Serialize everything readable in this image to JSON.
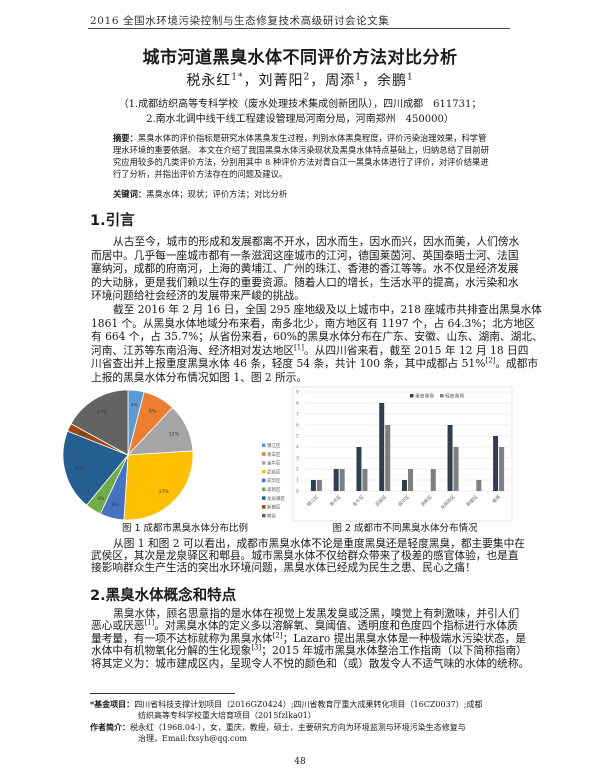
{
  "running_head": "2016 全国水环境污染控制与生态修复技术高级研讨会论文集",
  "title": "城市河道黑臭水体不同评价方法对比分析",
  "authors": [
    {
      "name": "税永红",
      "sup": "1*"
    },
    {
      "name": "刘菁阳",
      "sup": "2"
    },
    {
      "name": "周添",
      "sup": "1"
    },
    {
      "name": "余鹏",
      "sup": "1"
    }
  ],
  "affiliations": [
    "（1.成都纺织高等专科学校（废水处理技术集成创新团队），四川成都　611731；",
    "2.南水北调中线干线工程建设管理局河南分局，河南郑州　450000）"
  ],
  "abstract": {
    "label": "摘要：",
    "text": "黑臭水体的评价指标是研究水体黑臭发生过程，判别水体黑臭程度，评价污染治理效果，科学管理水环境的重要依据。 本文在介绍了我国黑臭水体污染现状及黑臭水体特点基础上，归纳总结了目前研究应用较多的几类评价方法，分别用其中 8 种评价方法对青白江一黑臭水体进行了评价，对评价结果进行了分析，并指出评价方法存在的问题及建议。"
  },
  "keywords": {
    "label": "关键词：",
    "text": "黑臭水体；现状；评价方法；对比分析"
  },
  "section1": {
    "heading": "1.引言",
    "paragraphs": [
      [
        "从古至今，城市的形成和发展都离不开水，因水而生，因水而兴，因水而美，人们傍水",
        "而居中。几乎每一座城市都有一条滋润这座城市的江河，德国莱茵河、英国泰晤士河、法国",
        "塞纳河，成都的府南河，上海的黄埔江、广州的珠江、香港的香江等等。水不仅是经济发展",
        "的大动脉，更是我们赖以生存的重要资源。随着人口的增长，生活水平的提高，水污染和水",
        "环境问题给社会经济的发展带来严峻的挑战。"
      ],
      [
        "截至 2016 年 2 月 16 日，全国 295 座地级及以上城市中，218 座城市共排查出黑臭水体",
        "1861 个。从黑臭水体地域分布来看，南多北少，南方地区有 1197 个，占 64.3%；北方地区",
        "有 664 个，占 35.7%；从省份来看，60%的黑臭水体分布在广东、安徽、山东、湖南、湖北、",
        [
          "河南、江苏等东南沿海、经济相对发达地区",
          {
            "sup": "[1]"
          },
          "。从四川省来看，截至 2015 年 12 月 18 日四"
        ],
        [
          "川省查出并上报重度黑臭水体 46 条，轻度 54 条，共计 100 条，其中成都占 51%",
          {
            "sup": "[2]"
          },
          "。成都市"
        ],
        "上报的黑臭水体分布情况如图 1、图 2 所示。"
      ]
    ],
    "after_figures": [
      [
        "从图 1 和图 2 可以看出，成都市黑臭水体不论是重度黑臭还是轻度黑臭，都主要集中在",
        "武侯区，其次是龙泉驿区和郫县。城市黑臭水体不仅给群众带来了极差的感官体验，也是直",
        "接影响群众生产生活的突出水环境问题，黑臭水体已经成为民生之患、民心之痛！"
      ]
    ]
  },
  "section2": {
    "heading": "2.黑臭水体概念和特点",
    "paragraphs": [
      [
        "黑臭水体，顾名思意指的是水体在视觉上发黑发臭或泛黑，嗅觉上有刺激味，并引人们",
        [
          "恶心或厌恶",
          {
            "sup": "[1]"
          },
          "。对黑臭水体的定义多以溶解氧、臭阈值、透明度和色度四个指标进行水体质"
        ],
        [
          "量考量，有一项不达标就称为黑臭水体",
          {
            "sup": "[2]"
          },
          "；Lazaro 提出黑臭水体是一种极端水污染状态，是"
        ],
        [
          "水体中有机物氧化分解的生化现象",
          {
            "sup": "[3]"
          },
          "；2015 年城市黑臭水体整治工作指南（以下简称指南）"
        ],
        "将其定义为：城市建成区内，呈现令人不悦的颜色和（或）散发令人不适气味的水体的统称。"
      ]
    ]
  },
  "chart_data": [
    {
      "type": "pie",
      "caption": "图 1 成都市黑臭水体分布比例",
      "categories": [
        "锦江区",
        "青羊区",
        "金牛区",
        "武侯区",
        "成华区",
        "高新区",
        "龙泉驿区",
        "新都区",
        "郫县"
      ],
      "values": [
        4,
        8,
        12,
        27,
        6,
        4,
        20,
        2,
        17
      ],
      "value_labels": [
        "4%",
        "8%",
        "12%",
        "27%",
        "6%",
        "4%",
        "20%",
        "2%",
        "17%"
      ],
      "colors": [
        "#5B9BD5",
        "#ED7D31",
        "#A5A5A5",
        "#FFC000",
        "#4472C4",
        "#70AD47",
        "#255E91",
        "#9E480E",
        "#636363"
      ],
      "legend": "right"
    },
    {
      "type": "bar",
      "caption": "图 2 成都市不同黑臭水体分布情况",
      "categories": [
        "锦江区",
        "青羊区",
        "金牛区",
        "武侯区",
        "成华区",
        "高新区",
        "龙泉驿区",
        "新都区",
        "郫县"
      ],
      "series": [
        {
          "name": "重度黑臭",
          "values": [
            1,
            2,
            4,
            8,
            1,
            0,
            6,
            0,
            5
          ],
          "color": "#323E4F"
        },
        {
          "name": "轻度黑臭",
          "values": [
            1,
            2,
            2,
            6,
            2,
            2,
            4,
            1,
            4
          ],
          "color": "#7F7F7F"
        }
      ],
      "ylim": [
        0,
        9
      ],
      "yticks": [
        0,
        1,
        2,
        3,
        4,
        5,
        6,
        7,
        8,
        9
      ],
      "grid": true,
      "legend": "top-right"
    }
  ],
  "footnotes": {
    "fund_label": "*基金项目：",
    "fund_lines": [
      "四川省科技支撑计划项目（2016GZ0424）;四川省教育厅重大成果转化项目（16CZ0037）;成都",
      "纺织高等专科学校重大培育项目（2015fzlka01）"
    ],
    "bio_label": "作者简介：",
    "bio_lines": [
      "税永红（1968.04-），女，重庆，教授，硕士，主要研究方向为环境监测与环境污染生态修复与",
      "治理，Email:fxsyh@qq.com"
    ]
  },
  "page_number": "48"
}
